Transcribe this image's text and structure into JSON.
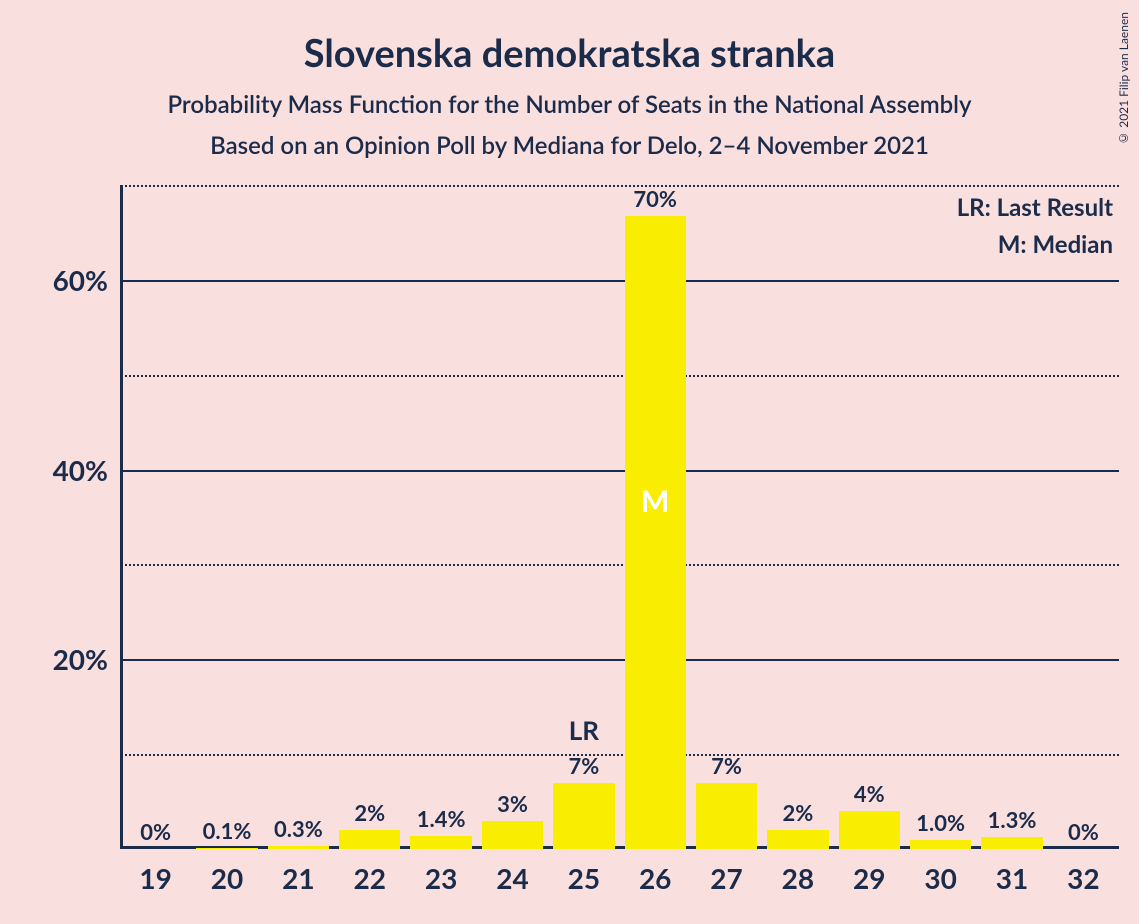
{
  "title": "Slovenska demokratska stranka",
  "subtitle1": "Probability Mass Function for the Number of Seats in the National Assembly",
  "subtitle2": "Based on an Opinion Poll by Mediana for Delo, 2–4 November 2021",
  "copyright": "© 2021 Filip van Laenen",
  "legend": {
    "lr": "LR: Last Result",
    "m": "M: Median"
  },
  "chart": {
    "type": "bar",
    "background_color": "#fadfdf",
    "bar_color": "#f9ed01",
    "axis_color": "#1b2b4a",
    "grid_major_color": "#1b2b4a",
    "grid_minor_color": "#1b2b4a",
    "text_color": "#1b2b4a",
    "median_text_color": "#ffffff",
    "title_fontsize": 38,
    "subtitle_fontsize": 24,
    "tick_fontsize": 28,
    "barlabel_fontsize": 22,
    "legend_fontsize": 24,
    "ylim": [
      0,
      70
    ],
    "y_major_ticks": [
      20,
      40,
      60
    ],
    "y_minor_ticks": [
      10,
      30,
      50,
      70
    ],
    "categories": [
      "19",
      "20",
      "21",
      "22",
      "23",
      "24",
      "25",
      "26",
      "27",
      "28",
      "29",
      "30",
      "31",
      "32"
    ],
    "values": [
      0,
      0.1,
      0.3,
      2,
      1.4,
      3,
      7,
      70,
      7,
      2,
      4,
      1.0,
      1.3,
      0
    ],
    "value_labels": [
      "0%",
      "0.1%",
      "0.3%",
      "2%",
      "1.4%",
      "3%",
      "7%",
      "70%",
      "7%",
      "2%",
      "4%",
      "1.0%",
      "1.3%",
      "0%"
    ],
    "lr_index": 6,
    "lr_label": "LR",
    "median_index": 7,
    "median_label": "M",
    "bar_width_ratio": 0.86
  }
}
